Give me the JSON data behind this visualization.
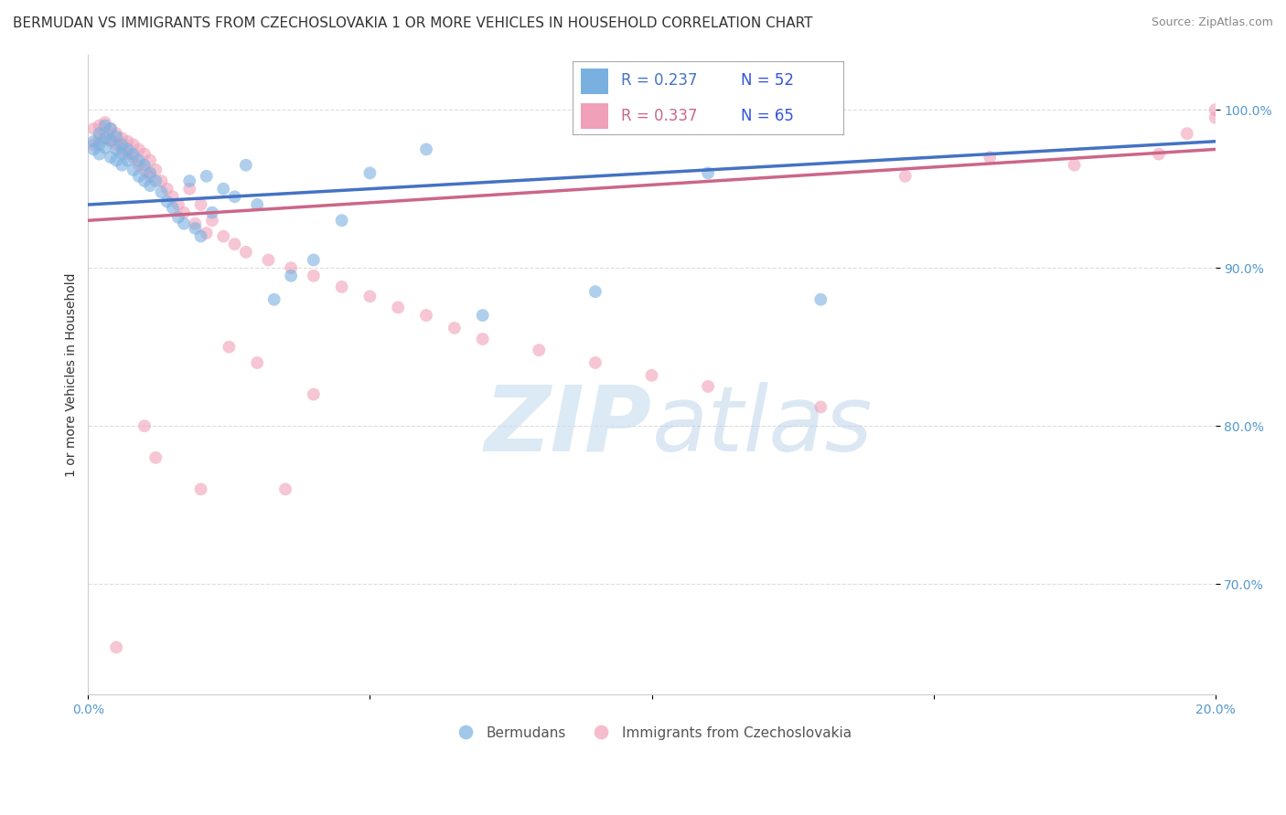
{
  "title": "BERMUDAN VS IMMIGRANTS FROM CZECHOSLOVAKIA 1 OR MORE VEHICLES IN HOUSEHOLD CORRELATION CHART",
  "source": "Source: ZipAtlas.com",
  "ylabel": "1 or more Vehicles in Household",
  "xlim": [
    0.0,
    0.2
  ],
  "ylim": [
    0.63,
    1.035
  ],
  "xticks": [
    0.0,
    0.05,
    0.1,
    0.15,
    0.2
  ],
  "xticklabels": [
    "0.0%",
    "",
    "",
    "",
    "20.0%"
  ],
  "yticks": [
    0.7,
    0.8,
    0.9,
    1.0
  ],
  "yticklabels": [
    "70.0%",
    "80.0%",
    "90.0%",
    "100.0%"
  ],
  "legend_entries": [
    {
      "label": "Bermudans",
      "color": "#a8c8f0"
    },
    {
      "label": "Immigrants from Czechoslovakia",
      "color": "#f0a0b8"
    }
  ],
  "legend_r_n": [
    {
      "R": "0.237",
      "N": "52"
    },
    {
      "R": "0.337",
      "N": "65"
    }
  ],
  "blue_scatter_x": [
    0.001,
    0.001,
    0.002,
    0.002,
    0.002,
    0.003,
    0.003,
    0.003,
    0.004,
    0.004,
    0.004,
    0.005,
    0.005,
    0.005,
    0.006,
    0.006,
    0.006,
    0.007,
    0.007,
    0.008,
    0.008,
    0.009,
    0.009,
    0.01,
    0.01,
    0.011,
    0.011,
    0.012,
    0.013,
    0.014,
    0.015,
    0.016,
    0.017,
    0.018,
    0.019,
    0.02,
    0.021,
    0.022,
    0.024,
    0.026,
    0.028,
    0.03,
    0.033,
    0.036,
    0.04,
    0.045,
    0.05,
    0.06,
    0.07,
    0.09,
    0.11,
    0.13
  ],
  "blue_scatter_y": [
    0.98,
    0.975,
    0.985,
    0.978,
    0.972,
    0.99,
    0.982,
    0.976,
    0.988,
    0.981,
    0.97,
    0.983,
    0.975,
    0.968,
    0.978,
    0.972,
    0.965,
    0.975,
    0.968,
    0.972,
    0.962,
    0.968,
    0.958,
    0.965,
    0.955,
    0.96,
    0.952,
    0.955,
    0.948,
    0.942,
    0.938,
    0.932,
    0.928,
    0.955,
    0.925,
    0.92,
    0.958,
    0.935,
    0.95,
    0.945,
    0.965,
    0.94,
    0.88,
    0.895,
    0.905,
    0.93,
    0.96,
    0.975,
    0.87,
    0.885,
    0.96,
    0.88
  ],
  "pink_scatter_x": [
    0.001,
    0.001,
    0.002,
    0.002,
    0.003,
    0.003,
    0.004,
    0.004,
    0.005,
    0.005,
    0.006,
    0.006,
    0.007,
    0.007,
    0.008,
    0.008,
    0.009,
    0.009,
    0.01,
    0.01,
    0.011,
    0.011,
    0.012,
    0.013,
    0.014,
    0.015,
    0.016,
    0.017,
    0.018,
    0.019,
    0.02,
    0.021,
    0.022,
    0.024,
    0.026,
    0.028,
    0.032,
    0.036,
    0.04,
    0.045,
    0.05,
    0.055,
    0.06,
    0.065,
    0.07,
    0.08,
    0.09,
    0.1,
    0.11,
    0.13,
    0.145,
    0.16,
    0.175,
    0.19,
    0.195,
    0.2,
    0.2,
    0.01,
    0.012,
    0.025,
    0.03,
    0.04,
    0.035,
    0.02,
    0.005
  ],
  "pink_scatter_y": [
    0.988,
    0.978,
    0.99,
    0.982,
    0.992,
    0.985,
    0.988,
    0.98,
    0.985,
    0.978,
    0.982,
    0.975,
    0.98,
    0.972,
    0.978,
    0.97,
    0.975,
    0.965,
    0.972,
    0.962,
    0.968,
    0.958,
    0.962,
    0.955,
    0.95,
    0.945,
    0.94,
    0.935,
    0.95,
    0.928,
    0.94,
    0.922,
    0.93,
    0.92,
    0.915,
    0.91,
    0.905,
    0.9,
    0.895,
    0.888,
    0.882,
    0.875,
    0.87,
    0.862,
    0.855,
    0.848,
    0.84,
    0.832,
    0.825,
    0.812,
    0.958,
    0.97,
    0.965,
    0.972,
    0.985,
    1.0,
    0.995,
    0.8,
    0.78,
    0.85,
    0.84,
    0.82,
    0.76,
    0.76,
    0.66
  ],
  "blue_line_x": [
    0.0,
    0.2
  ],
  "blue_line_y": [
    0.94,
    0.98
  ],
  "pink_line_x": [
    0.0,
    0.2
  ],
  "pink_line_y": [
    0.93,
    0.975
  ],
  "watermark_zip": "ZIP",
  "watermark_atlas": "atlas",
  "background_color": "#ffffff",
  "scatter_size": 100,
  "blue_color": "#7ab0e0",
  "pink_color": "#f0a0b8",
  "blue_line_color": "#4472c4",
  "pink_line_color": "#cc6688",
  "grid_color": "#dddddd",
  "title_fontsize": 11,
  "axis_label_fontsize": 10,
  "tick_fontsize": 10,
  "tick_color": "#5599cc"
}
